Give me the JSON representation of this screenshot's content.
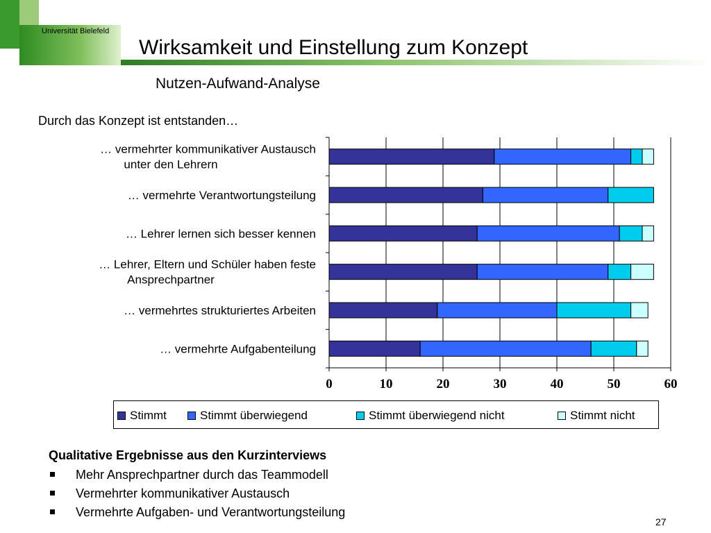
{
  "header": {
    "university": "Universität Bielefeld",
    "title": "Wirksamkeit und Einstellung zum Konzept",
    "subtitle": "Nutzen-Aufwand-Analyse"
  },
  "chart_caption": "Durch das Konzept ist entstanden…",
  "chart_data": {
    "type": "bar",
    "orientation": "horizontal",
    "stacked": true,
    "categories": [
      [
        "… vermehrter kommunikativer Austausch",
        "unter den Lehrern"
      ],
      [
        "… vermehrte Verantwortungsteilung"
      ],
      [
        "… Lehrer lernen sich besser kennen"
      ],
      [
        "… Lehrer, Eltern und Schüler haben feste",
        "Ansprechpartner"
      ],
      [
        "… vermehrtes strukturiertes Arbeiten"
      ],
      [
        "… vermehrte Aufgabenteilung"
      ]
    ],
    "series": [
      {
        "name": "Stimmt",
        "color": "#333399",
        "values": [
          29,
          27,
          26,
          26,
          19,
          16
        ]
      },
      {
        "name": "Stimmt überwiegend",
        "color": "#3366ff",
        "values": [
          24,
          22,
          25,
          23,
          21,
          30
        ]
      },
      {
        "name": "Stimmt überwiegend nicht",
        "color": "#00ccee",
        "values": [
          2,
          8,
          4,
          4,
          13,
          8
        ]
      },
      {
        "name": "Stimmt nicht",
        "color": "#ccffff",
        "values": [
          2,
          0,
          2,
          4,
          3,
          2
        ]
      }
    ],
    "xlim": [
      0,
      60
    ],
    "xticks": [
      "0",
      "10",
      "20",
      "30",
      "40",
      "50",
      "60"
    ],
    "grid": true,
    "legend_position": "bottom"
  },
  "qualitative": {
    "heading": "Qualitative Ergebnisse aus den Kurzinterviews",
    "items": [
      "Mehr Ansprechpartner durch das Teammodell",
      "Vermehrter kommunikativer Austausch",
      "Vermehrte Aufgaben- und Verantwortungsteilung"
    ]
  },
  "page_number": "27"
}
